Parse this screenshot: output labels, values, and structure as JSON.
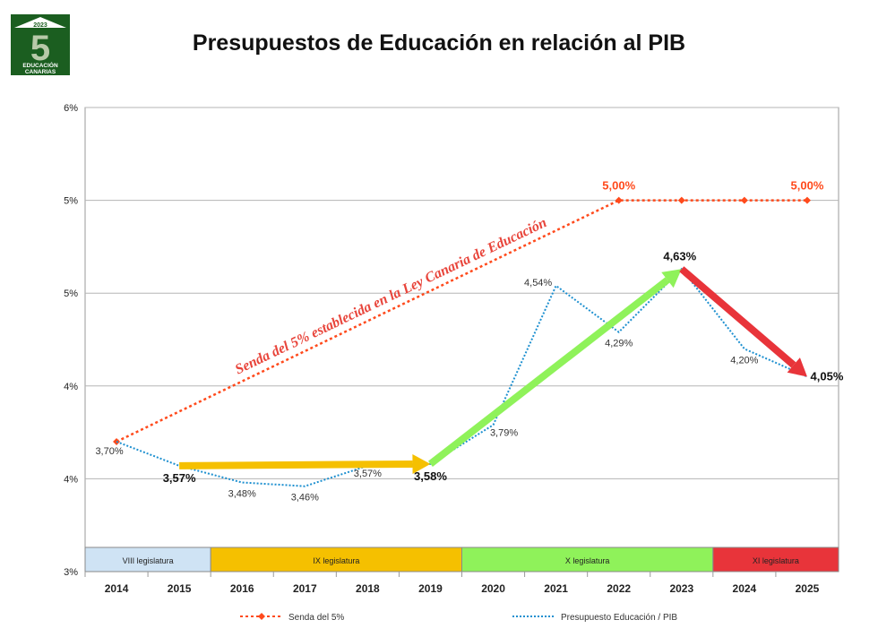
{
  "title": "Presupuestos de Educación en relación al PIB",
  "logo": {
    "year": "2023",
    "digit": "5",
    "line1": "EDUCACIÓN",
    "line2": "CANARIAS"
  },
  "colors": {
    "senda": "#ff4a1c",
    "presupuesto": "#1e90d0",
    "arrow_yellow": "#f5c000",
    "arrow_green": "#8ff25a",
    "arrow_red": "#e8343a",
    "band_viii": "#cfe3f4",
    "band_ix": "#f5c000",
    "band_x": "#8ff25a",
    "band_xi": "#e8343a"
  },
  "chart_data": {
    "type": "line",
    "title": "Presupuestos de Educación en relación al PIB",
    "categories": [
      "2014",
      "2015",
      "2016",
      "2017",
      "2018",
      "2019",
      "2020",
      "2021",
      "2022",
      "2023",
      "2024",
      "2025"
    ],
    "y_tick_labels": [
      "3%",
      "4%",
      "4%",
      "5%",
      "5%",
      "6%"
    ],
    "ylim": [
      3.0,
      5.5
    ],
    "grid": true,
    "legend_position": "bottom",
    "series": [
      {
        "name": "Senda del 5%",
        "x_start": "2014",
        "values": [
          3.7,
          null,
          null,
          null,
          null,
          null,
          null,
          null,
          5.0,
          5.0,
          5.0,
          5.0
        ],
        "point_labels": {
          "2014": "3,70%",
          "2022": "5,00%",
          "2025": "5,00%"
        }
      },
      {
        "name": "Presupuesto Educación / PIB",
        "values": [
          3.7,
          3.57,
          3.48,
          3.46,
          3.57,
          3.58,
          3.79,
          4.54,
          4.29,
          4.63,
          4.2,
          4.05
        ],
        "point_labels": [
          "3,70%",
          "3,57%",
          "3,48%",
          "3,46%",
          "3,57%",
          "3,58%",
          "3,79%",
          "4,54%",
          "4,29%",
          "4,63%",
          "4,20%",
          "4,05%"
        ]
      }
    ],
    "annotation": "Senda del 5% establecida en la Ley Canaria de Educación",
    "legislaturas": [
      {
        "label": "VIII legislatura",
        "from": "2014",
        "to": "2015"
      },
      {
        "label": "IX legislatura",
        "from": "2016",
        "to": "2019"
      },
      {
        "label": "X legislatura",
        "from": "2020",
        "to": "2023"
      },
      {
        "label": "XI legislatura",
        "from": "2024",
        "to": "2025"
      }
    ],
    "trend_arrows": [
      {
        "from": "2015",
        "to": "2019",
        "color": "arrow_yellow"
      },
      {
        "from": "2019",
        "to": "2023",
        "color": "arrow_green"
      },
      {
        "from": "2023",
        "to": "2025",
        "color": "arrow_red"
      }
    ]
  }
}
